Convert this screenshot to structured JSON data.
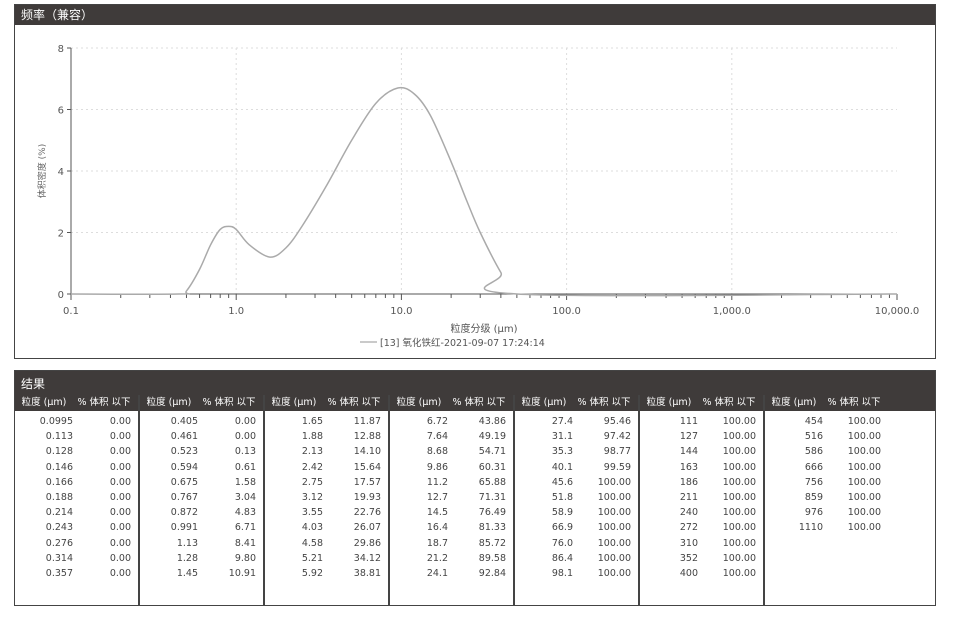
{
  "chart_panel": {
    "title": "频率（兼容）"
  },
  "chart_data": {
    "type": "line",
    "xlabel": "粒度分级 (μm)",
    "ylabel": "体积密度 (%)",
    "x_scale": "log",
    "xlim": [
      0.1,
      10000
    ],
    "ylim": [
      0,
      8
    ],
    "x_ticks": [
      "0.1",
      "1.0",
      "10.0",
      "100.0",
      "1,000.0",
      "10,000.0"
    ],
    "y_ticks": [
      "0",
      "2",
      "4",
      "6",
      "8"
    ],
    "grid": true,
    "legend_placement": "bottom-center",
    "series": [
      {
        "name": "[13] 氧化铁红-2021-09-07 17:24:14",
        "color": "#aaaaaa",
        "x": [
          0.1,
          0.45,
          0.5,
          0.6,
          0.7,
          0.8,
          0.9,
          1.0,
          1.2,
          1.6,
          2.0,
          2.5,
          3.5,
          5,
          7,
          9.5,
          12,
          15,
          20,
          25,
          30,
          40,
          50,
          10000
        ],
        "y": [
          0,
          0,
          0.1,
          0.8,
          1.6,
          2.1,
          2.2,
          2.1,
          1.6,
          1.2,
          1.5,
          2.2,
          3.5,
          5.0,
          6.2,
          6.7,
          6.5,
          5.8,
          4.3,
          3.0,
          2.0,
          0.7,
          0,
          0
        ]
      }
    ]
  },
  "results": {
    "title": "结果",
    "col_size": "粒度 (μm)",
    "col_pct": "% 体积 以下",
    "columns": [
      [
        [
          "0.0995",
          "0.00"
        ],
        [
          "0.113",
          "0.00"
        ],
        [
          "0.128",
          "0.00"
        ],
        [
          "0.146",
          "0.00"
        ],
        [
          "0.166",
          "0.00"
        ],
        [
          "0.188",
          "0.00"
        ],
        [
          "0.214",
          "0.00"
        ],
        [
          "0.243",
          "0.00"
        ],
        [
          "0.276",
          "0.00"
        ],
        [
          "0.314",
          "0.00"
        ],
        [
          "0.357",
          "0.00"
        ]
      ],
      [
        [
          "0.405",
          "0.00"
        ],
        [
          "0.461",
          "0.00"
        ],
        [
          "0.523",
          "0.13"
        ],
        [
          "0.594",
          "0.61"
        ],
        [
          "0.675",
          "1.58"
        ],
        [
          "0.767",
          "3.04"
        ],
        [
          "0.872",
          "4.83"
        ],
        [
          "0.991",
          "6.71"
        ],
        [
          "1.13",
          "8.41"
        ],
        [
          "1.28",
          "9.80"
        ],
        [
          "1.45",
          "10.91"
        ]
      ],
      [
        [
          "1.65",
          "11.87"
        ],
        [
          "1.88",
          "12.88"
        ],
        [
          "2.13",
          "14.10"
        ],
        [
          "2.42",
          "15.64"
        ],
        [
          "2.75",
          "17.57"
        ],
        [
          "3.12",
          "19.93"
        ],
        [
          "3.55",
          "22.76"
        ],
        [
          "4.03",
          "26.07"
        ],
        [
          "4.58",
          "29.86"
        ],
        [
          "5.21",
          "34.12"
        ],
        [
          "5.92",
          "38.81"
        ]
      ],
      [
        [
          "6.72",
          "43.86"
        ],
        [
          "7.64",
          "49.19"
        ],
        [
          "8.68",
          "54.71"
        ],
        [
          "9.86",
          "60.31"
        ],
        [
          "11.2",
          "65.88"
        ],
        [
          "12.7",
          "71.31"
        ],
        [
          "14.5",
          "76.49"
        ],
        [
          "16.4",
          "81.33"
        ],
        [
          "18.7",
          "85.72"
        ],
        [
          "21.2",
          "89.58"
        ],
        [
          "24.1",
          "92.84"
        ]
      ],
      [
        [
          "27.4",
          "95.46"
        ],
        [
          "31.1",
          "97.42"
        ],
        [
          "35.3",
          "98.77"
        ],
        [
          "40.1",
          "99.59"
        ],
        [
          "45.6",
          "100.00"
        ],
        [
          "51.8",
          "100.00"
        ],
        [
          "58.9",
          "100.00"
        ],
        [
          "66.9",
          "100.00"
        ],
        [
          "76.0",
          "100.00"
        ],
        [
          "86.4",
          "100.00"
        ],
        [
          "98.1",
          "100.00"
        ]
      ],
      [
        [
          "111",
          "100.00"
        ],
        [
          "127",
          "100.00"
        ],
        [
          "144",
          "100.00"
        ],
        [
          "163",
          "100.00"
        ],
        [
          "186",
          "100.00"
        ],
        [
          "211",
          "100.00"
        ],
        [
          "240",
          "100.00"
        ],
        [
          "272",
          "100.00"
        ],
        [
          "310",
          "100.00"
        ],
        [
          "352",
          "100.00"
        ],
        [
          "400",
          "100.00"
        ]
      ],
      [
        [
          "454",
          "100.00"
        ],
        [
          "516",
          "100.00"
        ],
        [
          "586",
          "100.00"
        ],
        [
          "666",
          "100.00"
        ],
        [
          "756",
          "100.00"
        ],
        [
          "859",
          "100.00"
        ],
        [
          "976",
          "100.00"
        ],
        [
          "1110",
          "100.00"
        ]
      ]
    ]
  }
}
